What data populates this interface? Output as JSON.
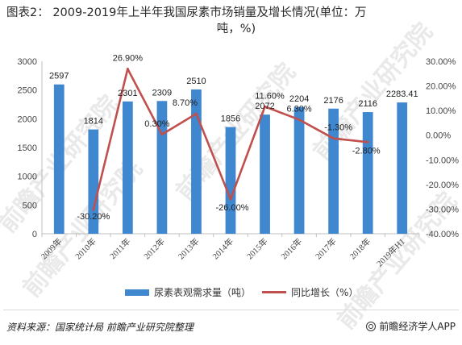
{
  "title": {
    "line1": "图表2：  2009-2019年上半年我国尿素市场销量及增长情况(单位：万",
    "line2": "吨，%)"
  },
  "chart_data": {
    "type": "bar+line",
    "categories": [
      "2009年",
      "2010年",
      "2011年",
      "2012年",
      "2013年",
      "2014年",
      "2015年",
      "2016年",
      "2017年",
      "2018年",
      "2019年H1"
    ],
    "series": [
      {
        "name": "尿素表观需求量（吨）",
        "type": "bar",
        "axis": "left",
        "values": [
          2597,
          1814,
          2301,
          2309,
          2510,
          1856,
          2072,
          2204,
          2176,
          2116,
          2283.41
        ],
        "labels": [
          "2597",
          "1814",
          "2301",
          "2309",
          "2510",
          "1856",
          "2072",
          "2204",
          "2176",
          "2116",
          "2283.41"
        ],
        "color": "#3f87cf"
      },
      {
        "name": "同比增长（%）",
        "type": "line",
        "axis": "right",
        "values": [
          null,
          -30.2,
          26.9,
          0.3,
          8.7,
          -26.0,
          11.6,
          6.3,
          -1.3,
          -2.8,
          null
        ],
        "labels": [
          "",
          "-30.20%",
          "26.90%",
          "0.30%",
          "8.70%",
          "-26.00%",
          "11.60%",
          "6.30%",
          "-1.30%",
          "-2.80%",
          ""
        ],
        "color": "#c0504d"
      }
    ],
    "y_left": {
      "min": 0,
      "max": 3000,
      "step": 500,
      "ticks": [
        "0",
        "500",
        "1000",
        "1500",
        "2000",
        "2500",
        "3000"
      ]
    },
    "y_right": {
      "min": -40,
      "max": 30,
      "step": 10,
      "ticks": [
        "-40.00%",
        "-30.00%",
        "-20.00%",
        "-10.00%",
        "0.00%",
        "10.00%",
        "20.00%",
        "30.00%"
      ]
    },
    "grid": false,
    "legend_position": "bottom",
    "watermark": "前瞻产业研究院"
  },
  "legend": {
    "bar_label": "尿素表观需求量（吨）",
    "line_label": "同比增长（%）"
  },
  "footer": {
    "source": "资料来源：国家统计局 前瞻产业研究院整理",
    "brand": "前瞻经济学人APP"
  }
}
